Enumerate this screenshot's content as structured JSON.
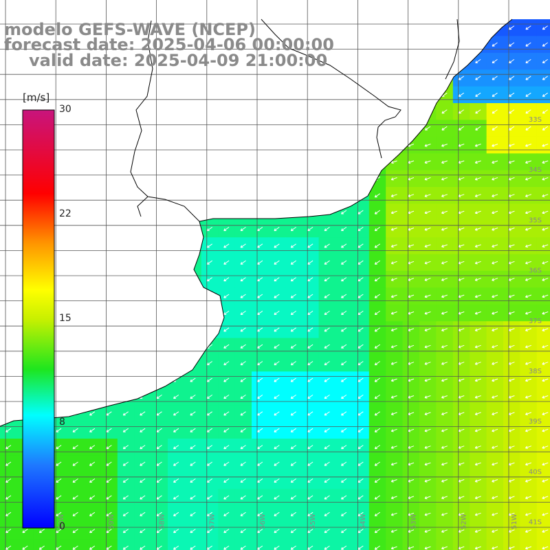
{
  "title": {
    "line1": "modelo GEFS-WAVE (NCEP)",
    "line2": "forecast date: 2025-04-06 00:00:00",
    "line3": "valid date: 2025-04-09 21:00:00"
  },
  "colorbar": {
    "unit_label": "[m/s]",
    "min": 0,
    "max": 30,
    "ticks": [
      "30",
      "22",
      "15",
      "8",
      "0"
    ]
  },
  "lat_labels": [
    "33S",
    "34S",
    "35S",
    "36S",
    "37S",
    "38S",
    "39S",
    "40S",
    "41S"
  ],
  "lon_labels": [
    "60W",
    "59W",
    "58W",
    "57W",
    "56W",
    "55W",
    "54W",
    "53W",
    "52W",
    "51W"
  ],
  "colors": {
    "land": "#ffffff",
    "coast": "#000000",
    "grid": "#555555",
    "arrows": "#ffffff"
  }
}
